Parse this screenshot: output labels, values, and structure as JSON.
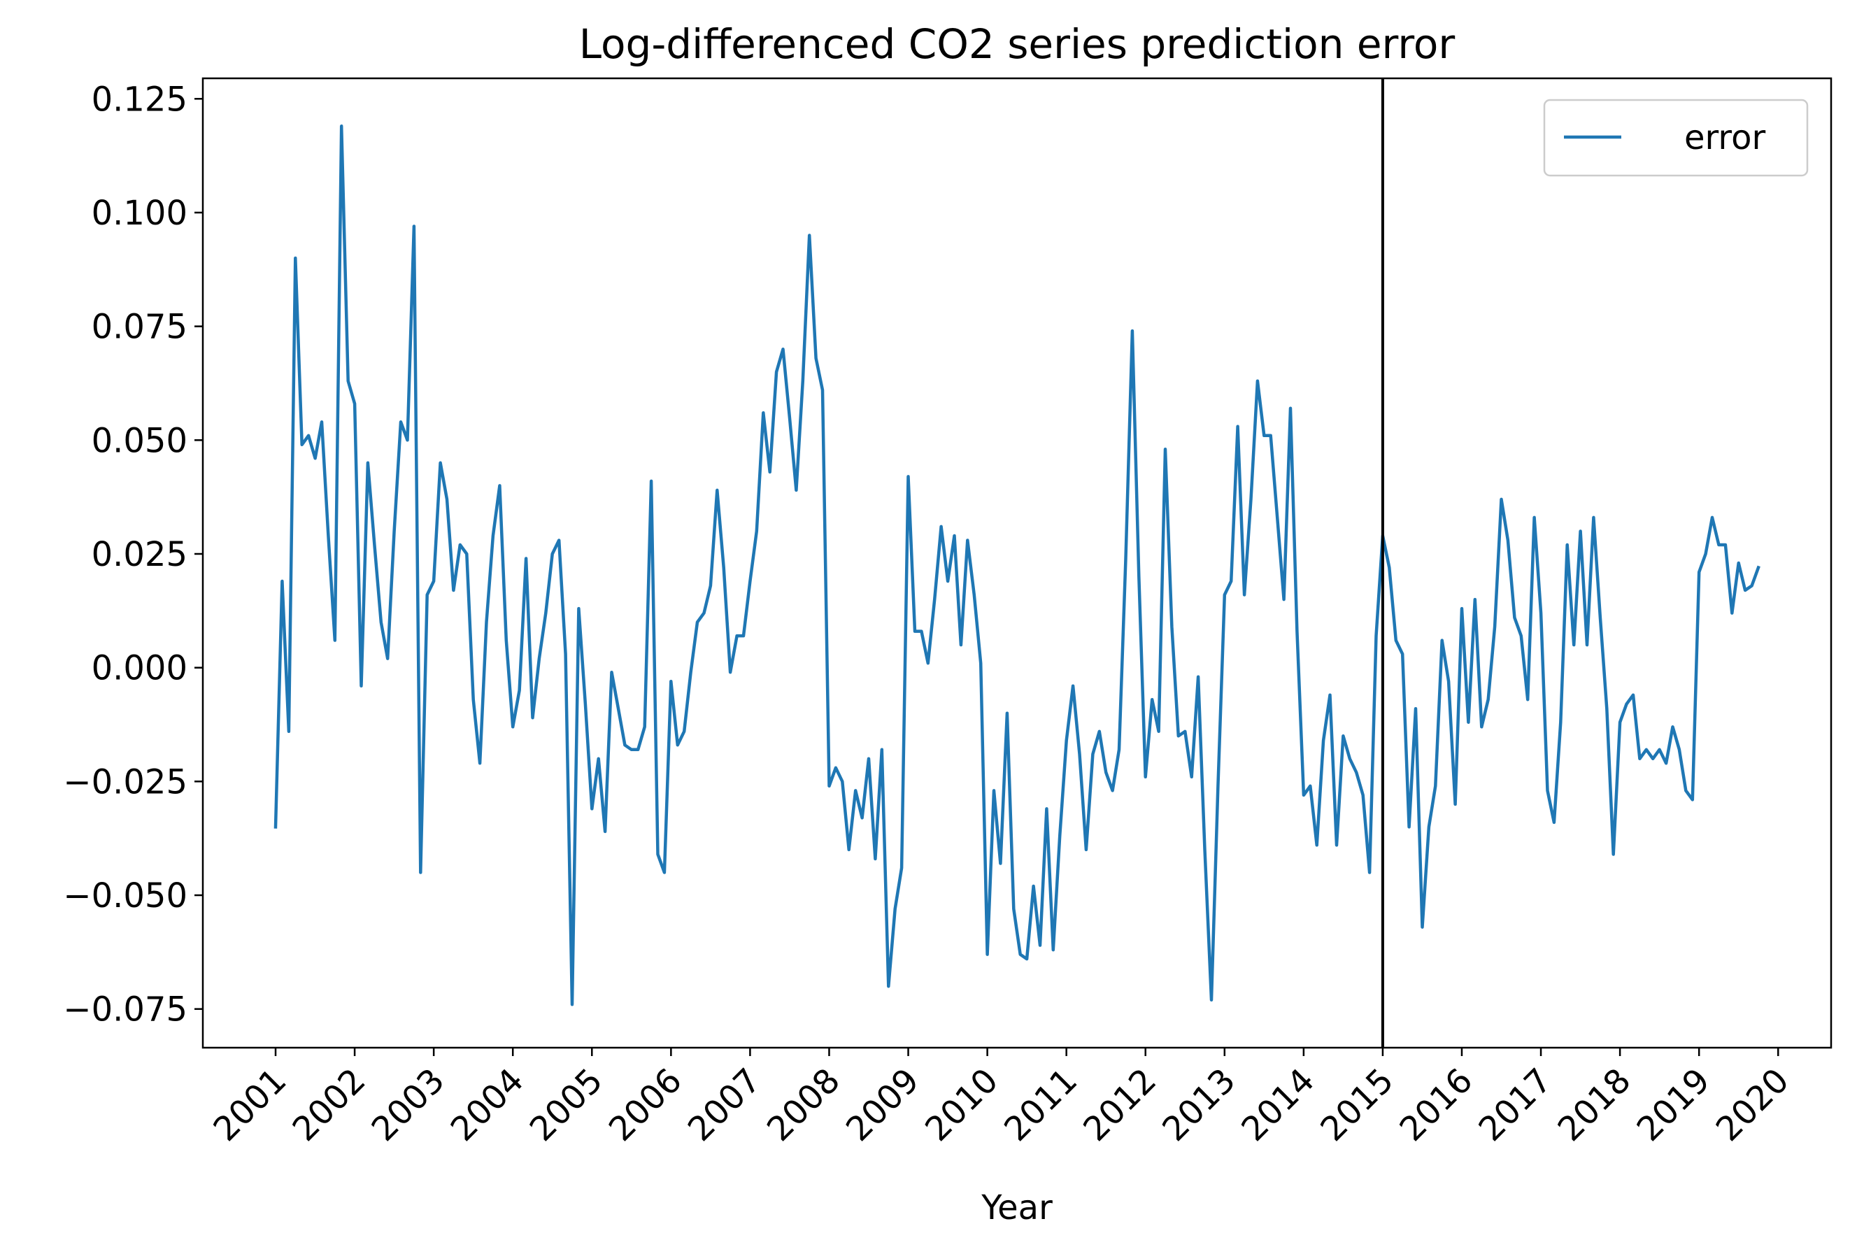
{
  "chart_data": {
    "type": "line",
    "title": "Log-differenced CO2 series prediction error",
    "xlabel": "Year",
    "ylabel": "",
    "x_start": "2001-01",
    "x_step": "month",
    "xlim": [
      2000.08,
      2020.67
    ],
    "ylim": [
      -0.0835,
      0.1295
    ],
    "x_ticks": [
      2001,
      2002,
      2003,
      2004,
      2005,
      2006,
      2007,
      2008,
      2009,
      2010,
      2011,
      2012,
      2013,
      2014,
      2015,
      2016,
      2017,
      2018,
      2019,
      2020
    ],
    "x_tick_labels": [
      "2001",
      "2002",
      "2003",
      "2004",
      "2005",
      "2006",
      "2007",
      "2008",
      "2009",
      "2010",
      "2011",
      "2012",
      "2013",
      "2014",
      "2015",
      "2016",
      "2017",
      "2018",
      "2019",
      "2020"
    ],
    "y_ticks": [
      -0.075,
      -0.05,
      -0.025,
      0.0,
      0.025,
      0.05,
      0.075,
      0.1,
      0.125
    ],
    "y_tick_labels": [
      "−0.075",
      "−0.050",
      "−0.025",
      "0.000",
      "0.025",
      "0.050",
      "0.075",
      "0.100",
      "0.125"
    ],
    "grid": false,
    "legend": {
      "placement": "upper-right",
      "entries": [
        "error"
      ]
    },
    "vline": {
      "x": 2015.0,
      "color": "#000000"
    },
    "series": [
      {
        "name": "error",
        "color": "#1f77b4",
        "values": [
          -0.035,
          0.019,
          -0.014,
          0.09,
          0.049,
          0.051,
          0.046,
          0.054,
          0.029,
          0.006,
          0.119,
          0.063,
          0.058,
          -0.004,
          0.045,
          0.027,
          0.01,
          0.002,
          0.03,
          0.054,
          0.05,
          0.097,
          -0.045,
          0.016,
          0.019,
          0.045,
          0.037,
          0.017,
          0.027,
          0.025,
          -0.007,
          -0.021,
          0.01,
          0.029,
          0.04,
          0.006,
          -0.013,
          -0.005,
          0.024,
          -0.011,
          0.002,
          0.012,
          0.025,
          0.028,
          0.003,
          -0.074,
          0.013,
          -0.008,
          -0.031,
          -0.02,
          -0.036,
          -0.001,
          -0.009,
          -0.017,
          -0.018,
          -0.018,
          -0.013,
          0.041,
          -0.041,
          -0.045,
          -0.003,
          -0.017,
          -0.014,
          -0.001,
          0.01,
          0.012,
          0.018,
          0.039,
          0.022,
          -0.001,
          0.007,
          0.007,
          0.019,
          0.03,
          0.056,
          0.043,
          0.065,
          0.07,
          0.055,
          0.039,
          0.063,
          0.095,
          0.068,
          0.061,
          -0.026,
          -0.022,
          -0.025,
          -0.04,
          -0.027,
          -0.033,
          -0.02,
          -0.042,
          -0.018,
          -0.07,
          -0.053,
          -0.044,
          0.042,
          0.008,
          0.008,
          0.001,
          0.015,
          0.031,
          0.019,
          0.029,
          0.005,
          0.028,
          0.016,
          0.001,
          -0.063,
          -0.027,
          -0.043,
          -0.01,
          -0.053,
          -0.063,
          -0.064,
          -0.048,
          -0.061,
          -0.031,
          -0.062,
          -0.037,
          -0.016,
          -0.004,
          -0.019,
          -0.04,
          -0.019,
          -0.014,
          -0.023,
          -0.027,
          -0.018,
          0.024,
          0.074,
          0.02,
          -0.024,
          -0.007,
          -0.014,
          0.048,
          0.009,
          -0.015,
          -0.014,
          -0.024,
          -0.002,
          -0.04,
          -0.073,
          -0.026,
          0.016,
          0.019,
          0.053,
          0.016,
          0.037,
          0.063,
          0.051,
          0.051,
          0.033,
          0.015,
          0.057,
          0.008,
          -0.028,
          -0.026,
          -0.039,
          -0.016,
          -0.006,
          -0.039,
          -0.015,
          -0.02,
          -0.023,
          -0.028,
          -0.045,
          0.007,
          0.029,
          0.022,
          0.006,
          0.003,
          -0.035,
          -0.009,
          -0.057,
          -0.035,
          -0.026,
          0.006,
          -0.003,
          -0.03,
          0.013,
          -0.012,
          0.015,
          -0.013,
          -0.007,
          0.009,
          0.037,
          0.028,
          0.011,
          0.007,
          -0.007,
          0.033,
          0.012,
          -0.027,
          -0.034,
          -0.012,
          0.027,
          0.005,
          0.03,
          0.005,
          0.033,
          0.011,
          -0.009,
          -0.041,
          -0.012,
          -0.008,
          -0.006,
          -0.02,
          -0.018,
          -0.02,
          -0.018,
          -0.021,
          -0.013,
          -0.018,
          -0.027,
          -0.029,
          0.021,
          0.025,
          0.033,
          0.027,
          0.027,
          0.012,
          0.023,
          0.017,
          0.018,
          0.022
        ]
      }
    ]
  }
}
